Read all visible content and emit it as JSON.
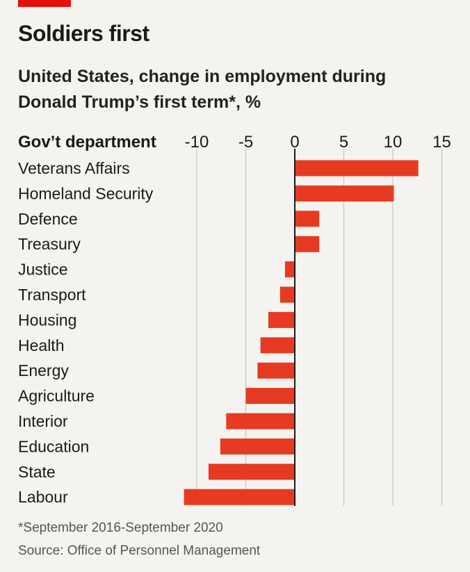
{
  "chart_data": {
    "type": "bar",
    "orientation": "horizontal",
    "title": "Soldiers first",
    "subtitle": "United States, change in employment during Donald Trump’s first term*, %",
    "category_header": "Gov’t department",
    "categories": [
      "Veterans Affairs",
      "Homeland Security",
      "Defence",
      "Treasury",
      "Justice",
      "Transport",
      "Housing",
      "Health",
      "Energy",
      "Agriculture",
      "Interior",
      "Education",
      "State",
      "Labour"
    ],
    "values": [
      12.6,
      10.1,
      2.5,
      2.5,
      -1.0,
      -1.5,
      -2.7,
      -3.5,
      -3.8,
      -5.0,
      -7.0,
      -7.6,
      -8.8,
      -11.3
    ],
    "xlim": [
      -11.5,
      15
    ],
    "xticks": [
      -10,
      -5,
      0,
      5,
      10,
      15
    ],
    "xtick_labels": [
      "-10",
      "-5",
      "0",
      "5",
      "10",
      "15"
    ],
    "bar_color": "#e63a22",
    "grid": true,
    "footnote": "*September 2016-September 2020",
    "source": "Source: Office of Personnel Management"
  }
}
